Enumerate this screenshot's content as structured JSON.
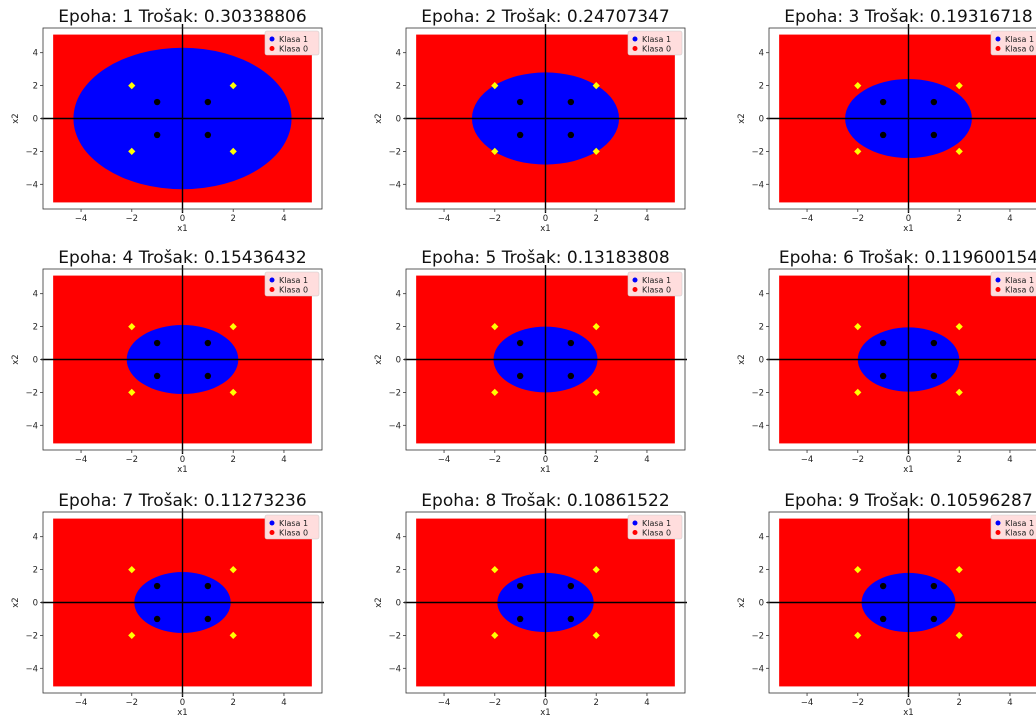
{
  "chart_data": [
    {
      "type": "scatter",
      "title": "Epoha: 1 Trošak: 0.30338806",
      "xlabel": "x1",
      "ylabel": "x2",
      "xlim": [
        -5.5,
        5.5
      ],
      "ylim": [
        -5.5,
        5.5
      ],
      "xticks": [
        -4,
        -2,
        0,
        2,
        4
      ],
      "yticks": [
        -4,
        -2,
        0,
        2,
        4
      ],
      "legend": {
        "position": "top-right",
        "entries": [
          {
            "label": "Klasa 1",
            "color": "#0000ff"
          },
          {
            "label": "Klasa 0",
            "color": "#ff0000"
          }
        ]
      },
      "region_class1": {
        "shape": "ellipse",
        "center": [
          0,
          0
        ],
        "rx": 4.3,
        "ry": 4.3
      },
      "points_class1": [
        [
          -1,
          1
        ],
        [
          1,
          1
        ],
        [
          -1,
          -1
        ],
        [
          1,
          -1
        ]
      ],
      "points_class0": [
        [
          -2,
          2
        ],
        [
          2,
          2
        ],
        [
          -2,
          -2
        ],
        [
          2,
          -2
        ]
      ]
    },
    {
      "type": "scatter",
      "title": "Epoha: 2 Trošak: 0.24707347",
      "xlabel": "x1",
      "ylabel": "x2",
      "xlim": [
        -5.5,
        5.5
      ],
      "ylim": [
        -5.5,
        5.5
      ],
      "xticks": [
        -4,
        -2,
        0,
        2,
        4
      ],
      "yticks": [
        -4,
        -2,
        0,
        2,
        4
      ],
      "legend": {
        "position": "top-right",
        "entries": [
          {
            "label": "Klasa 1",
            "color": "#0000ff"
          },
          {
            "label": "Klasa 0",
            "color": "#ff0000"
          }
        ]
      },
      "region_class1": {
        "shape": "ellipse",
        "center": [
          0,
          0
        ],
        "rx": 2.9,
        "ry": 2.8
      },
      "points_class1": [
        [
          -1,
          1
        ],
        [
          1,
          1
        ],
        [
          -1,
          -1
        ],
        [
          1,
          -1
        ]
      ],
      "points_class0": [
        [
          -2,
          2
        ],
        [
          2,
          2
        ],
        [
          -2,
          -2
        ],
        [
          2,
          -2
        ]
      ]
    },
    {
      "type": "scatter",
      "title": "Epoha: 3 Trošak: 0.19316718",
      "xlabel": "x1",
      "ylabel": "x2",
      "xlim": [
        -5.5,
        5.5
      ],
      "ylim": [
        -5.5,
        5.5
      ],
      "xticks": [
        -4,
        -2,
        0,
        2,
        4
      ],
      "yticks": [
        -4,
        -2,
        0,
        2,
        4
      ],
      "legend": {
        "position": "top-right",
        "entries": [
          {
            "label": "Klasa 1",
            "color": "#0000ff"
          },
          {
            "label": "Klasa 0",
            "color": "#ff0000"
          }
        ]
      },
      "region_class1": {
        "shape": "ellipse",
        "center": [
          0,
          0
        ],
        "rx": 2.5,
        "ry": 2.4
      },
      "points_class1": [
        [
          -1,
          1
        ],
        [
          1,
          1
        ],
        [
          -1,
          -1
        ],
        [
          1,
          -1
        ]
      ],
      "points_class0": [
        [
          -2,
          2
        ],
        [
          2,
          2
        ],
        [
          -2,
          -2
        ],
        [
          2,
          -2
        ]
      ]
    },
    {
      "type": "scatter",
      "title": "Epoha: 4 Trošak: 0.15436432",
      "xlabel": "x1",
      "ylabel": "x2",
      "xlim": [
        -5.5,
        5.5
      ],
      "ylim": [
        -5.5,
        5.5
      ],
      "xticks": [
        -4,
        -2,
        0,
        2,
        4
      ],
      "yticks": [
        -4,
        -2,
        0,
        2,
        4
      ],
      "legend": {
        "position": "top-right",
        "entries": [
          {
            "label": "Klasa 1",
            "color": "#0000ff"
          },
          {
            "label": "Klasa 0",
            "color": "#ff0000"
          }
        ]
      },
      "region_class1": {
        "shape": "ellipse",
        "center": [
          0,
          0
        ],
        "rx": 2.2,
        "ry": 2.1
      },
      "points_class1": [
        [
          -1,
          1
        ],
        [
          1,
          1
        ],
        [
          -1,
          -1
        ],
        [
          1,
          -1
        ]
      ],
      "points_class0": [
        [
          -2,
          2
        ],
        [
          2,
          2
        ],
        [
          -2,
          -2
        ],
        [
          2,
          -2
        ]
      ]
    },
    {
      "type": "scatter",
      "title": "Epoha: 5 Trošak: 0.13183808",
      "xlabel": "x1",
      "ylabel": "x2",
      "xlim": [
        -5.5,
        5.5
      ],
      "ylim": [
        -5.5,
        5.5
      ],
      "xticks": [
        -4,
        -2,
        0,
        2,
        4
      ],
      "yticks": [
        -4,
        -2,
        0,
        2,
        4
      ],
      "legend": {
        "position": "top-right",
        "entries": [
          {
            "label": "Klasa 1",
            "color": "#0000ff"
          },
          {
            "label": "Klasa 0",
            "color": "#ff0000"
          }
        ]
      },
      "region_class1": {
        "shape": "ellipse",
        "center": [
          0,
          0
        ],
        "rx": 2.05,
        "ry": 2.0
      },
      "points_class1": [
        [
          -1,
          1
        ],
        [
          1,
          1
        ],
        [
          -1,
          -1
        ],
        [
          1,
          -1
        ]
      ],
      "points_class0": [
        [
          -2,
          2
        ],
        [
          2,
          2
        ],
        [
          -2,
          -2
        ],
        [
          2,
          -2
        ]
      ]
    },
    {
      "type": "scatter",
      "title": "Epoha: 6 Trošak: 0.119600154",
      "xlabel": "x1",
      "ylabel": "x2",
      "xlim": [
        -5.5,
        5.5
      ],
      "ylim": [
        -5.5,
        5.5
      ],
      "xticks": [
        -4,
        -2,
        0,
        2,
        4
      ],
      "yticks": [
        -4,
        -2,
        0,
        2,
        4
      ],
      "legend": {
        "position": "top-right",
        "entries": [
          {
            "label": "Klasa 1",
            "color": "#0000ff"
          },
          {
            "label": "Klasa 0",
            "color": "#ff0000"
          }
        ]
      },
      "region_class1": {
        "shape": "ellipse",
        "center": [
          0,
          0
        ],
        "rx": 2.0,
        "ry": 1.95
      },
      "points_class1": [
        [
          -1,
          1
        ],
        [
          1,
          1
        ],
        [
          -1,
          -1
        ],
        [
          1,
          -1
        ]
      ],
      "points_class0": [
        [
          -2,
          2
        ],
        [
          2,
          2
        ],
        [
          -2,
          -2
        ],
        [
          2,
          -2
        ]
      ]
    },
    {
      "type": "scatter",
      "title": "Epoha: 7 Trošak: 0.11273236",
      "xlabel": "x1",
      "ylabel": "x2",
      "xlim": [
        -5.5,
        5.5
      ],
      "ylim": [
        -5.5,
        5.5
      ],
      "xticks": [
        -4,
        -2,
        0,
        2,
        4
      ],
      "yticks": [
        -4,
        -2,
        0,
        2,
        4
      ],
      "legend": {
        "position": "top-right",
        "entries": [
          {
            "label": "Klasa 1",
            "color": "#0000ff"
          },
          {
            "label": "Klasa 0",
            "color": "#ff0000"
          }
        ]
      },
      "region_class1": {
        "shape": "ellipse",
        "center": [
          0,
          0
        ],
        "rx": 1.9,
        "ry": 1.85
      },
      "points_class1": [
        [
          -1,
          1
        ],
        [
          1,
          1
        ],
        [
          -1,
          -1
        ],
        [
          1,
          -1
        ]
      ],
      "points_class0": [
        [
          -2,
          2
        ],
        [
          2,
          2
        ],
        [
          -2,
          -2
        ],
        [
          2,
          -2
        ]
      ]
    },
    {
      "type": "scatter",
      "title": "Epoha: 8 Trošak: 0.10861522",
      "xlabel": "x1",
      "ylabel": "x2",
      "xlim": [
        -5.5,
        5.5
      ],
      "ylim": [
        -5.5,
        5.5
      ],
      "xticks": [
        -4,
        -2,
        0,
        2,
        4
      ],
      "yticks": [
        -4,
        -2,
        0,
        2,
        4
      ],
      "legend": {
        "position": "top-right",
        "entries": [
          {
            "label": "Klasa 1",
            "color": "#0000ff"
          },
          {
            "label": "Klasa 0",
            "color": "#ff0000"
          }
        ]
      },
      "region_class1": {
        "shape": "ellipse",
        "center": [
          0,
          0
        ],
        "rx": 1.9,
        "ry": 1.8
      },
      "points_class1": [
        [
          -1,
          1
        ],
        [
          1,
          1
        ],
        [
          -1,
          -1
        ],
        [
          1,
          -1
        ]
      ],
      "points_class0": [
        [
          -2,
          2
        ],
        [
          2,
          2
        ],
        [
          -2,
          -2
        ],
        [
          2,
          -2
        ]
      ]
    },
    {
      "type": "scatter",
      "title": "Epoha: 9 Trošak: 0.10596287",
      "xlabel": "x1",
      "ylabel": "x2",
      "xlim": [
        -5.5,
        5.5
      ],
      "ylim": [
        -5.5,
        5.5
      ],
      "xticks": [
        -4,
        -2,
        0,
        2,
        4
      ],
      "yticks": [
        -4,
        -2,
        0,
        2,
        4
      ],
      "legend": {
        "position": "top-right",
        "entries": [
          {
            "label": "Klasa 1",
            "color": "#0000ff"
          },
          {
            "label": "Klasa 0",
            "color": "#ff0000"
          }
        ]
      },
      "region_class1": {
        "shape": "ellipse",
        "center": [
          0,
          0
        ],
        "rx": 1.85,
        "ry": 1.8
      },
      "points_class1": [
        [
          -1,
          1
        ],
        [
          1,
          1
        ],
        [
          -1,
          -1
        ],
        [
          1,
          -1
        ]
      ],
      "points_class0": [
        [
          -2,
          2
        ],
        [
          2,
          2
        ],
        [
          -2,
          -2
        ],
        [
          2,
          -2
        ]
      ]
    }
  ],
  "colors": {
    "class1_region": "#0000ff",
    "class0_region": "#ff0000",
    "class1_points": "#000000",
    "class0_points": "#ffff00",
    "legend_bg": "#ffdddd"
  }
}
